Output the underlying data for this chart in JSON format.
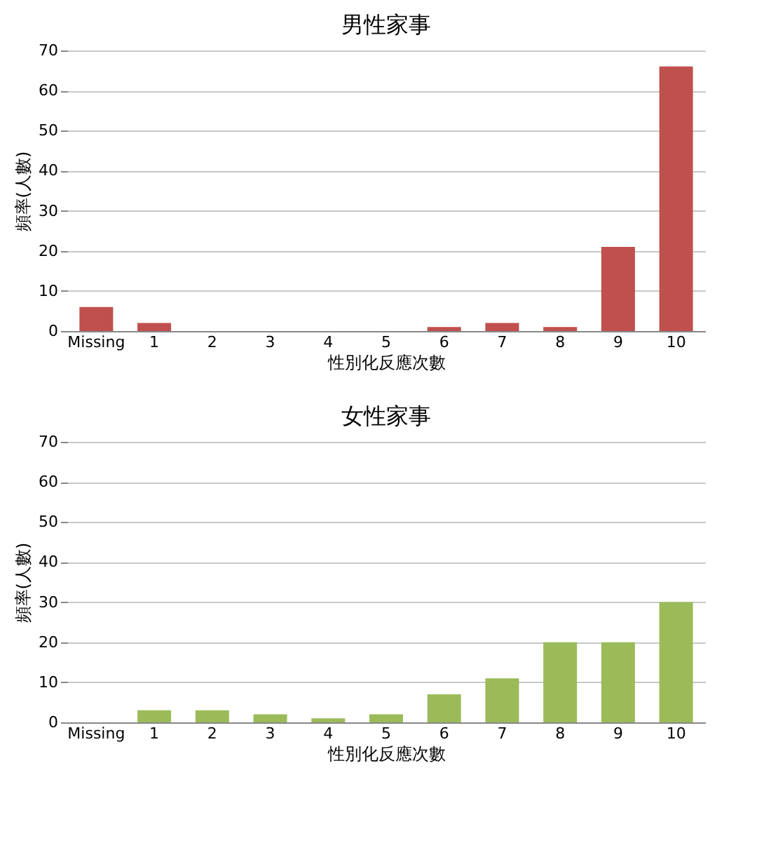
{
  "chart_data": [
    {
      "type": "bar",
      "title": "男性家事",
      "xlabel": "性別化反應次數",
      "ylabel": "頻率(人數)",
      "categories": [
        "Missing",
        "1",
        "2",
        "3",
        "4",
        "5",
        "6",
        "7",
        "8",
        "9",
        "10"
      ],
      "values": [
        6,
        2,
        0,
        0,
        0,
        0,
        1,
        2,
        1,
        21,
        66
      ],
      "color": "#c0504d",
      "ylim": [
        0,
        70
      ],
      "yticks": [
        0,
        10,
        20,
        30,
        40,
        50,
        60,
        70
      ],
      "grid": "y"
    },
    {
      "type": "bar",
      "title": "女性家事",
      "xlabel": "性別化反應次數",
      "ylabel": "頻率(人數)",
      "categories": [
        "Missing",
        "1",
        "2",
        "3",
        "4",
        "5",
        "6",
        "7",
        "8",
        "9",
        "10"
      ],
      "values": [
        0,
        3,
        3,
        2,
        1,
        2,
        7,
        11,
        20,
        20,
        30
      ],
      "color": "#9bbb59",
      "ylim": [
        0,
        70
      ],
      "yticks": [
        0,
        10,
        20,
        30,
        40,
        50,
        60,
        70
      ],
      "grid": "y"
    }
  ]
}
